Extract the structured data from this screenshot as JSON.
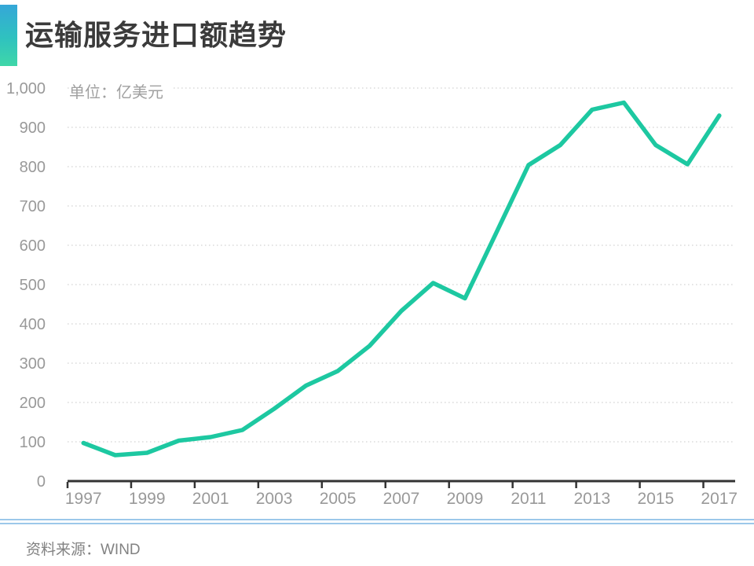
{
  "header": {
    "title": "运输服务进口额趋势",
    "accent_colors": {
      "top": "#35a7d8",
      "mid": "#2fc2bf",
      "bottom": "#3fd7a8"
    },
    "title_color": "#3b3b3b"
  },
  "chart_data": {
    "type": "line",
    "title": "运输服务进口额趋势",
    "unit_label": "单位：亿美元",
    "x": [
      1997,
      1998,
      1999,
      2000,
      2001,
      2002,
      2003,
      2004,
      2005,
      2006,
      2007,
      2008,
      2009,
      2010,
      2011,
      2012,
      2013,
      2014,
      2015,
      2016,
      2017
    ],
    "values": [
      97,
      66,
      72,
      103,
      112,
      130,
      184,
      243,
      280,
      344,
      433,
      504,
      465,
      634,
      804,
      855,
      945,
      963,
      855,
      806,
      930
    ],
    "xlabel": "",
    "ylabel": "",
    "ylim": [
      0,
      1000
    ],
    "ytick_step": 100,
    "ytick_labels": [
      "0",
      "100",
      "200",
      "300",
      "400",
      "500",
      "600",
      "700",
      "800",
      "900",
      "1,000"
    ],
    "xtick_labels": [
      "1997",
      "1999",
      "2001",
      "2003",
      "2005",
      "2007",
      "2009",
      "2011",
      "2013",
      "2015",
      "2017"
    ],
    "xtick_every": 2,
    "grid": "dotted horizontal",
    "legend": "none",
    "line_color": "#1dc8a1",
    "grid_color": "#dcdcdc",
    "axis_color": "#333333",
    "label_color": "#999999"
  },
  "footer": {
    "source_label": "资料来源：WIND",
    "divider_color": "#9cc8ea"
  }
}
